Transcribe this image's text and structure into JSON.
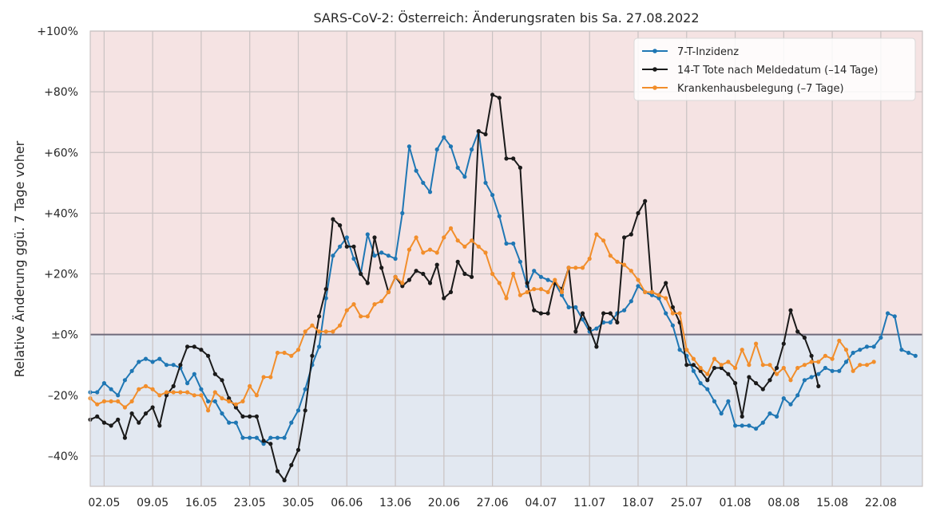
{
  "chart_data": {
    "type": "line",
    "title": "SARS-CoV-2: Österreich: Änderungsraten bis Sa. 27.08.2022",
    "xlabel": "",
    "ylabel": "Relative Änderung ggü. 7 Tage voher",
    "ylim": [
      -50,
      100
    ],
    "yticks": [
      {
        "value": 100,
        "label": "+100%"
      },
      {
        "value": 80,
        "label": "+80%"
      },
      {
        "value": 60,
        "label": "+60%"
      },
      {
        "value": 40,
        "label": "+40%"
      },
      {
        "value": 20,
        "label": "+20%"
      },
      {
        "value": 0,
        "label": "±0%"
      },
      {
        "value": -20,
        "label": "–20%"
      },
      {
        "value": -40,
        "label": "–40%"
      }
    ],
    "x_start": "2022-04-30",
    "x_range": [
      0,
      120
    ],
    "xticks": [
      {
        "day": 2,
        "label": "02.05"
      },
      {
        "day": 9,
        "label": "09.05"
      },
      {
        "day": 16,
        "label": "16.05"
      },
      {
        "day": 23,
        "label": "23.05"
      },
      {
        "day": 30,
        "label": "30.05"
      },
      {
        "day": 37,
        "label": "06.06"
      },
      {
        "day": 44,
        "label": "13.06"
      },
      {
        "day": 51,
        "label": "20.06"
      },
      {
        "day": 58,
        "label": "27.06"
      },
      {
        "day": 65,
        "label": "04.07"
      },
      {
        "day": 72,
        "label": "11.07"
      },
      {
        "day": 79,
        "label": "18.07"
      },
      {
        "day": 86,
        "label": "25.07"
      },
      {
        "day": 93,
        "label": "01.08"
      },
      {
        "day": 100,
        "label": "08.08"
      },
      {
        "day": 107,
        "label": "15.08"
      },
      {
        "day": 114,
        "label": "22.08"
      }
    ],
    "grid": true,
    "legend_position": "top-right",
    "background_bands": {
      "positive": "#f5e3e3",
      "negative": "#e2e8f1"
    },
    "series": [
      {
        "name": "7-T-Inzidenz",
        "color": "#1f77b4",
        "start_day": 0,
        "values": [
          -19,
          -19,
          -16,
          -18,
          -20,
          -15,
          -12,
          -9,
          -8,
          -9,
          -8,
          -10,
          -10,
          -11,
          -16,
          -13,
          -18,
          -22,
          -22,
          -26,
          -29,
          -29,
          -34,
          -34,
          -34,
          -36,
          -34,
          -34,
          -34,
          -29,
          -25,
          -18,
          -10,
          -4,
          12,
          26,
          29,
          32,
          25,
          20,
          33,
          26,
          27,
          26,
          25,
          40,
          62,
          54,
          50,
          47,
          61,
          65,
          62,
          55,
          52,
          61,
          67,
          50,
          46,
          39,
          30,
          30,
          24,
          16,
          21,
          19,
          18,
          17,
          13,
          9,
          9,
          5,
          1,
          2,
          4,
          4,
          7,
          8,
          11,
          16,
          14,
          13,
          12,
          7,
          3,
          -5,
          -7,
          -12,
          -16,
          -18,
          -22,
          -26,
          -22,
          -30,
          -30,
          -30,
          -31,
          -29,
          -26,
          -27,
          -21,
          -23,
          -20,
          -15,
          -14,
          -13,
          -11,
          -12,
          -12,
          -9,
          -6,
          -5,
          -4,
          -4,
          -1,
          7,
          6,
          -5,
          -6,
          -7
        ]
      },
      {
        "name": "14-T Tote nach Meldedatum (–14 Tage)",
        "color": "#1a1a1a",
        "start_day": 0,
        "values": [
          -28,
          -27,
          -29,
          -30,
          -28,
          -34,
          -26,
          -29,
          -26,
          -24,
          -30,
          -20,
          -17,
          -10,
          -4,
          -4,
          -5,
          -7,
          -13,
          -15,
          -21,
          -24,
          -27,
          -27,
          -27,
          -35,
          -36,
          -45,
          -48,
          -43,
          -38,
          -25,
          -7,
          6,
          15,
          38,
          36,
          29,
          29,
          20,
          17,
          32,
          22,
          14,
          19,
          16,
          18,
          21,
          20,
          17,
          23,
          12,
          14,
          24,
          20,
          19,
          67,
          66,
          79,
          78,
          58,
          58,
          55,
          17,
          8,
          7,
          7,
          17,
          15,
          22,
          1,
          7,
          2,
          -4,
          7,
          7,
          4,
          32,
          33,
          40,
          44,
          14,
          13,
          17,
          9,
          4,
          -10,
          -10,
          -12,
          -15,
          -11,
          -11,
          -13,
          -16,
          -27,
          -14,
          -16,
          -18,
          -15,
          -11,
          -3,
          8,
          1,
          -1,
          -7,
          -17
        ]
      },
      {
        "name": "Krankenhausbelegung (–7 Tage)",
        "color": "#f28e2b",
        "start_day": 0,
        "values": [
          -21,
          -23,
          -22,
          -22,
          -22,
          -24,
          -22,
          -18,
          -17,
          -18,
          -20,
          -19,
          -19,
          -19,
          -19,
          -20,
          -20,
          -25,
          -19,
          -21,
          -22,
          -23,
          -22,
          -17,
          -20,
          -14,
          -14,
          -6,
          -6,
          -7,
          -5,
          1,
          3,
          1,
          1,
          1,
          3,
          8,
          10,
          6,
          6,
          10,
          11,
          14,
          19,
          17,
          28,
          32,
          27,
          28,
          27,
          32,
          35,
          31,
          29,
          31,
          29,
          27,
          20,
          17,
          12,
          20,
          13,
          14,
          15,
          15,
          14,
          18,
          14,
          22,
          22,
          22,
          25,
          33,
          31,
          26,
          24,
          23,
          21,
          18,
          14,
          14,
          13,
          12,
          7,
          7,
          -5,
          -8,
          -11,
          -13,
          -8,
          -10,
          -9,
          -11,
          -5,
          -10,
          -3,
          -10,
          -10,
          -13,
          -11,
          -15,
          -11,
          -10,
          -9,
          -9,
          -7,
          -8,
          -2,
          -5,
          -12,
          -10,
          -10,
          -9
        ]
      }
    ]
  }
}
